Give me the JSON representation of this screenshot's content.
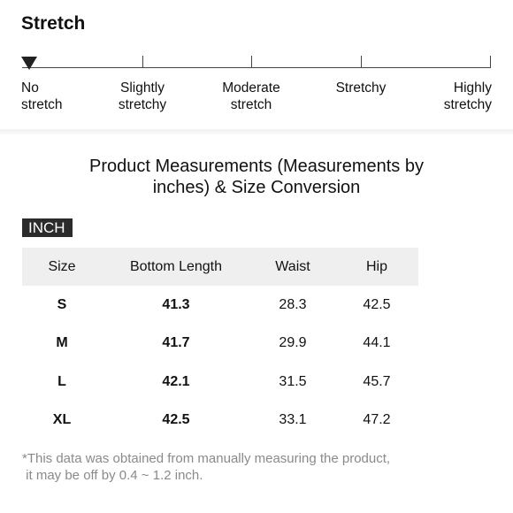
{
  "stretch": {
    "title": "Stretch",
    "selected_level": "No stretch",
    "levels": [
      {
        "line1": "No",
        "line2": "stretch"
      },
      {
        "line1": "Slightly",
        "line2": "stretchy"
      },
      {
        "line1": "Moderate",
        "line2": "stretch"
      },
      {
        "line1": "Stretchy",
        "line2": ""
      },
      {
        "line1": "Highly",
        "line2": "stretchy"
      }
    ]
  },
  "measurements": {
    "heading_line1": "Product Measurements (Measurements by",
    "heading_line2": "inches) & Size Conversion",
    "unit": "INCH",
    "headers": [
      "Size",
      "Bottom Length",
      "Waist",
      "Hip"
    ],
    "rows": [
      [
        "S",
        "41.3",
        "28.3",
        "42.5"
      ],
      [
        "M",
        "41.7",
        "29.9",
        "44.1"
      ],
      [
        "L",
        "42.1",
        "31.5",
        "45.7"
      ],
      [
        "XL",
        "42.5",
        "33.1",
        "47.2"
      ]
    ],
    "note_line1": "*This data was obtained from manually measuring the product,",
    "note_line2": " it may be off by 0.4 ~ 1.2 inch."
  },
  "colors": {
    "text": "#111111",
    "indicator": "#222222",
    "badge_bg": "#2b2b2b",
    "header_bg": "#efefef",
    "note": "#8a8a8a"
  }
}
